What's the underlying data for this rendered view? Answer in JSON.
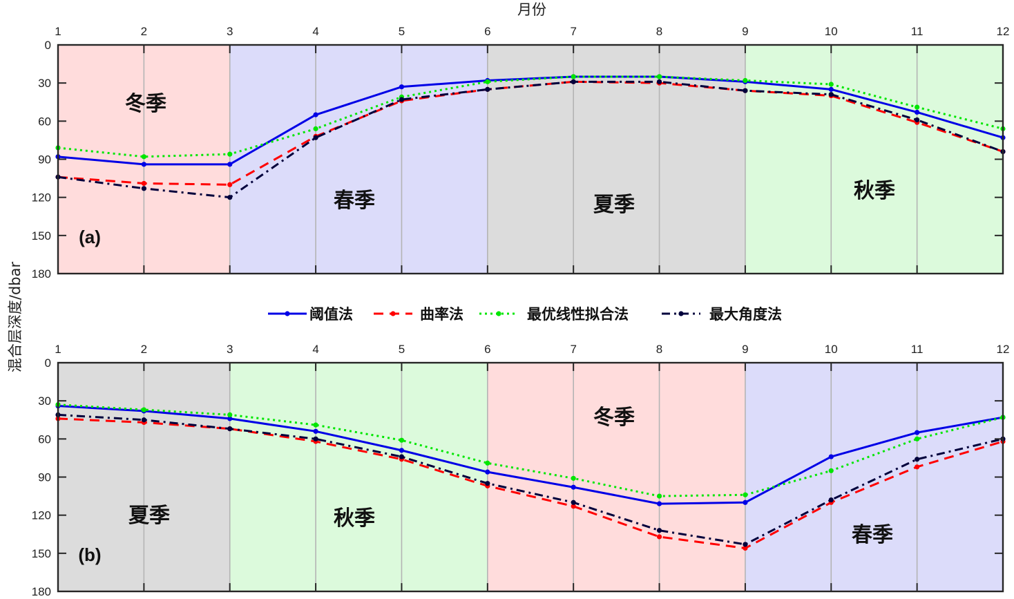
{
  "chart_data": {
    "type": "line",
    "x_axis_title": "月份",
    "y_axis_title": "混合层深度/dbar",
    "x": [
      1,
      2,
      3,
      4,
      5,
      6,
      7,
      8,
      9,
      10,
      11,
      12
    ],
    "xticks": [
      "1",
      "2",
      "3",
      "4",
      "5",
      "6",
      "7",
      "8",
      "9",
      "10",
      "11",
      "12"
    ],
    "yticks": [
      "0",
      "30",
      "60",
      "90",
      "120",
      "150",
      "180"
    ],
    "ylim": [
      0,
      180
    ],
    "y_reversed": true,
    "grid": "vertical",
    "legend_position": "between-panels",
    "legend": [
      {
        "name": "阈值法",
        "color": "#0000e6",
        "style": "solid"
      },
      {
        "name": "曲率法",
        "color": "#ff0000",
        "style": "dashed"
      },
      {
        "name": "最优线性拟合法",
        "color": "#00e600",
        "style": "dotted"
      },
      {
        "name": "最大角度法",
        "color": "#00003c",
        "style": "dashdot"
      }
    ],
    "panels": [
      {
        "label": "(a)",
        "seasons": [
          {
            "name": "冬季",
            "start": 1,
            "end": 3,
            "color": "#ffdcdc"
          },
          {
            "name": "春季",
            "start": 3,
            "end": 6,
            "color": "#dcdcfa"
          },
          {
            "name": "夏季",
            "start": 6,
            "end": 9,
            "color": "#dcdcdc"
          },
          {
            "name": "秋季",
            "start": 9,
            "end": 12,
            "color": "#dcfadc"
          }
        ],
        "series": [
          {
            "name": "阈值法",
            "values": [
              88,
              94,
              94,
              55,
              33,
              28,
              25,
              25,
              29,
              35,
              53,
              73
            ]
          },
          {
            "name": "曲率法",
            "values": [
              104,
              109,
              110,
              72,
              44,
              35,
              29,
              30,
              36,
              40,
              61,
              84
            ]
          },
          {
            "name": "最优线性拟合法",
            "values": [
              81,
              88,
              86,
              66,
              41,
              29,
              25,
              25,
              28,
              31,
              49,
              66
            ]
          },
          {
            "name": "最大角度法",
            "values": [
              104,
              113,
              120,
              73,
              43,
              35,
              29,
              29,
              36,
              39,
              59,
              84
            ]
          }
        ]
      },
      {
        "label": "(b)",
        "seasons": [
          {
            "name": "夏季",
            "start": 1,
            "end": 3,
            "color": "#dcdcdc"
          },
          {
            "name": "秋季",
            "start": 3,
            "end": 6,
            "color": "#dcfadc"
          },
          {
            "name": "冬季",
            "start": 6,
            "end": 9,
            "color": "#ffdcdc"
          },
          {
            "name": "春季",
            "start": 9,
            "end": 12,
            "color": "#dcdcfa"
          }
        ],
        "series": [
          {
            "name": "阈值法",
            "values": [
              34,
              38,
              44,
              54,
              69,
              86,
              98,
              111,
              110,
              74,
              55,
              43
            ]
          },
          {
            "name": "曲率法",
            "values": [
              44,
              47,
              52,
              62,
              76,
              97,
              113,
              137,
              146,
              110,
              82,
              62
            ]
          },
          {
            "name": "最优线性拟合法",
            "values": [
              33,
              37,
              41,
              49,
              61,
              79,
              91,
              105,
              104,
              85,
              60,
              43
            ]
          },
          {
            "name": "最大角度法",
            "values": [
              41,
              45,
              52,
              60,
              74,
              95,
              110,
              132,
              143,
              108,
              76,
              60
            ]
          }
        ]
      }
    ]
  }
}
